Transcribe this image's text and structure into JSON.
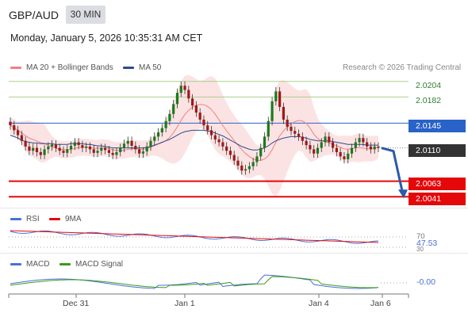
{
  "header": {
    "pair": "GBP/AUD",
    "timeframe": "30 MIN",
    "datetime": "Monday, January 5, 2026 10:35:31 AM CET"
  },
  "legend": {
    "items": [
      {
        "label": "MA 20 + Bollinger Bands",
        "color": "#f08080"
      },
      {
        "label": "MA 50",
        "color": "#2a4d8f"
      }
    ],
    "credit": "Research © 2026 Trading Central"
  },
  "levels": [
    {
      "value": "2.0204",
      "style": "plain"
    },
    {
      "value": "2.0182",
      "style": "plain"
    },
    {
      "value": "2.0145",
      "style": "blue"
    },
    {
      "value": "2.0110",
      "style": "dark"
    },
    {
      "value": "2.0063",
      "style": "red"
    },
    {
      "value": "2.0041",
      "style": "red"
    }
  ],
  "rsi": {
    "legend": [
      {
        "label": "RSI",
        "color": "#4a6fd8"
      },
      {
        "label": "9MA",
        "color": "#e4080a"
      }
    ],
    "level_70": "70",
    "value": "47.53",
    "level_30": "30"
  },
  "macd": {
    "legend": [
      {
        "label": "MACD",
        "color": "#4a6fd8"
      },
      {
        "label": "MACD Signal",
        "color": "#3a9a1a"
      }
    ],
    "value": "-0.00"
  },
  "x_axis": [
    "Dec 31",
    "Jan 1",
    "Jan 4",
    "Jan 6"
  ],
  "chart_data": {
    "type": "candlestick",
    "y_range": [
      2.003,
      2.0215
    ],
    "key_levels": [
      2.0204,
      2.0182,
      2.0145,
      2.011,
      2.0063,
      2.0041
    ],
    "closes": [
      2.0142,
      2.0135,
      2.0128,
      2.012,
      2.0112,
      2.0106,
      2.011,
      2.0104,
      2.01,
      2.0108,
      2.0112,
      2.0115,
      2.011,
      2.0106,
      2.0103,
      2.0108,
      2.0113,
      2.0118,
      2.0114,
      2.011,
      2.0112,
      2.0108,
      2.0103,
      2.0106,
      2.011,
      2.0107,
      2.0103,
      2.01,
      2.0104,
      2.011,
      2.0116,
      2.012,
      2.0113,
      2.0108,
      2.0102,
      2.0105,
      2.0112,
      2.012,
      2.0126,
      2.0132,
      2.0138,
      2.0148,
      2.0158,
      2.0172,
      2.0188,
      2.0198,
      2.0192,
      2.018,
      2.017,
      2.016,
      2.015,
      2.0142,
      2.0135,
      2.0128,
      2.0122,
      2.0118,
      2.0112,
      2.0106,
      2.01,
      2.0092,
      2.0085,
      2.0078,
      2.008,
      2.0084,
      2.009,
      2.0098,
      2.011,
      2.0126,
      2.0148,
      2.0176,
      2.019,
      2.0168,
      2.015,
      2.014,
      2.0134,
      2.013,
      2.0126,
      2.012,
      2.0114,
      2.0108,
      2.0102,
      2.011,
      2.0118,
      2.0126,
      2.0118,
      2.011,
      2.0104,
      2.0098,
      2.0094,
      2.0102,
      2.011,
      2.0118,
      2.0124,
      2.0118,
      2.0112,
      2.0108,
      2.0112,
      2.011
    ],
    "ma50": [
      2.0128,
      2.0126,
      2.0124,
      2.0121,
      2.0119,
      2.0118,
      2.0117,
      2.0117,
      2.0116,
      2.0116,
      2.0116,
      2.0116,
      2.0115,
      2.0115,
      2.0115,
      2.0115,
      2.0116,
      2.0116,
      2.0116,
      2.0116,
      2.0115,
      2.0115,
      2.0114,
      2.0113,
      2.0113,
      2.0112,
      2.0111,
      2.011,
      2.011,
      2.011,
      2.011,
      2.011,
      2.011,
      2.011,
      2.011,
      2.011,
      2.0111,
      2.0112,
      2.0114,
      2.0116,
      2.0118,
      2.012,
      2.0122,
      2.0125,
      2.0128,
      2.0131,
      2.0133,
      2.0134,
      2.0135,
      2.0135,
      2.0135,
      2.0135,
      2.0134,
      2.0133,
      2.0131,
      2.0129,
      2.0127,
      2.0124,
      2.0121,
      2.0118,
      2.0115,
      2.0112,
      2.011,
      2.0108,
      2.0107,
      2.0107,
      2.0108,
      2.011,
      2.0113,
      2.0117,
      2.012,
      2.0122,
      2.0124,
      2.0125,
      2.0126,
      2.0126,
      2.0126,
      2.0125,
      2.0124,
      2.0122,
      2.0121,
      2.012,
      2.012,
      2.012,
      2.012,
      2.0119,
      2.0118,
      2.0117,
      2.0116,
      2.0115,
      2.0115,
      2.0115,
      2.0115,
      2.0115,
      2.0114,
      2.0114,
      2.0114,
      2.0114
    ]
  }
}
